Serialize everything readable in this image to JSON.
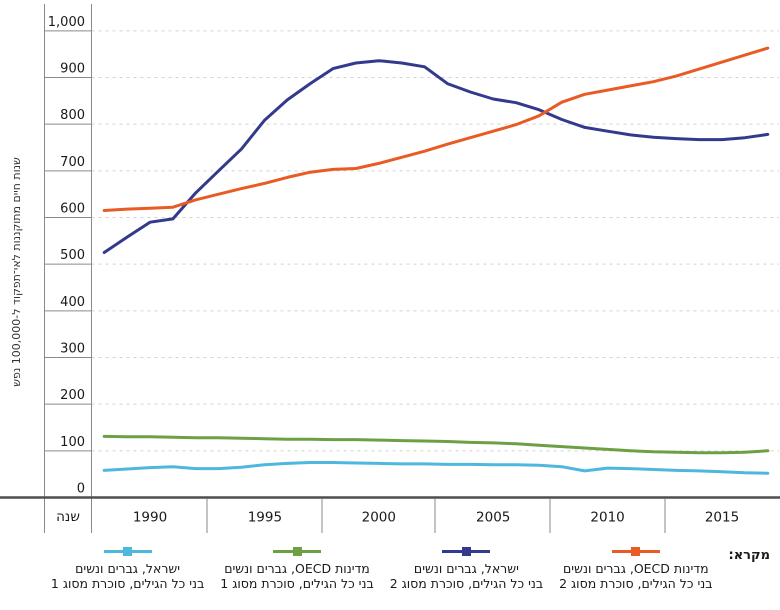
{
  "chart_data": {
    "type": "line",
    "title": "",
    "xlabel": "שנה",
    "ylabel": "שנות חיים מתוקננות לאי־תפקוד ל-100,000 נפש",
    "x_years": [
      1988,
      1989,
      1990,
      1991,
      1992,
      1993,
      1994,
      1995,
      1996,
      1997,
      1998,
      1999,
      2000,
      2001,
      2002,
      2003,
      2004,
      2005,
      2006,
      2007,
      2008,
      2009,
      2010,
      2011,
      2012,
      2013,
      2014,
      2015,
      2016,
      2017
    ],
    "xtick_years": [
      1990,
      1995,
      2000,
      2005,
      2010,
      2015
    ],
    "xtick_labels": [
      "1990",
      "1995",
      "2000",
      "2005",
      "2010",
      "2015"
    ],
    "ytick_values": [
      0,
      100,
      200,
      300,
      400,
      500,
      600,
      700,
      800,
      900,
      1000
    ],
    "ytick_labels": [
      "0",
      "100",
      "200",
      "300",
      "400",
      "500",
      "600",
      "700",
      "800",
      "900",
      "1,000"
    ],
    "ylim": [
      0,
      1060
    ],
    "grid": "horizontal-dashed",
    "legend_position": "bottom",
    "series": [
      {
        "name": "מדינות OECD, גברים ונשים, בני כל הגילים, סוכרת מסוג 2",
        "color": "#E95B25",
        "values": [
          615,
          618,
          620,
          622,
          638,
          650,
          662,
          673,
          686,
          697,
          703,
          705,
          716,
          729,
          742,
          757,
          771,
          785,
          799,
          818,
          847,
          864,
          873,
          882,
          891,
          903,
          918,
          933,
          948,
          963
        ]
      },
      {
        "name": "ישראל, גברים ונשים, בני כל הגילים, סוכרת מסוג 2",
        "color": "#333A8D",
        "values": [
          525,
          558,
          590,
          597,
          653,
          700,
          747,
          808,
          852,
          887,
          919,
          931,
          936,
          931,
          923,
          887,
          869,
          854,
          846,
          831,
          810,
          793,
          785,
          777,
          772,
          769,
          767,
          767,
          771,
          778
        ]
      },
      {
        "name": "מדינות OECD, גברים ונשים, בני כל הגילים, סוכרת מסוג 1",
        "color": "#6DA043",
        "values": [
          131,
          130,
          130,
          129,
          128,
          128,
          127,
          126,
          125,
          125,
          124,
          124,
          123,
          122,
          121,
          120,
          118,
          117,
          115,
          112,
          109,
          106,
          103,
          100,
          98,
          97,
          96,
          96,
          97,
          100
        ]
      },
      {
        "name": "ישראל, גברים ונשים, בני כל הגילים, סוכרת מסוג 1",
        "color": "#4EB7DE",
        "values": [
          58,
          61,
          64,
          66,
          62,
          62,
          65,
          70,
          73,
          75,
          75,
          74,
          73,
          72,
          72,
          71,
          71,
          70,
          70,
          69,
          66,
          57,
          63,
          62,
          60,
          58,
          57,
          55,
          53,
          52
        ]
      }
    ]
  },
  "legend": {
    "title": "מקרא:",
    "items": [
      {
        "line1": "מדינות OECD, גברים ונשים",
        "line2": "בני כל הגילים, סוכרת מסוג 2",
        "color": "#E95B25"
      },
      {
        "line1": "ישראל, גברים ונשים",
        "line2": "בני כל הגילים, סוכרת מסוג 2",
        "color": "#333A8D"
      },
      {
        "line1": "מדינות OECD, גברים ונשים",
        "line2": "בני כל הגילים, סוכרת מסוג 1",
        "color": "#6DA043"
      },
      {
        "line1": "ישראל, גברים ונשים",
        "line2": "בני כל הגילים, סוכרת מסוג 1",
        "color": "#4EB7DE"
      }
    ]
  },
  "colors": {
    "axis_frame": "#8a8a8a",
    "zero_axis": "#4f4f4f",
    "gridline": "#d2d2d2",
    "text": "#1a1a1a"
  }
}
